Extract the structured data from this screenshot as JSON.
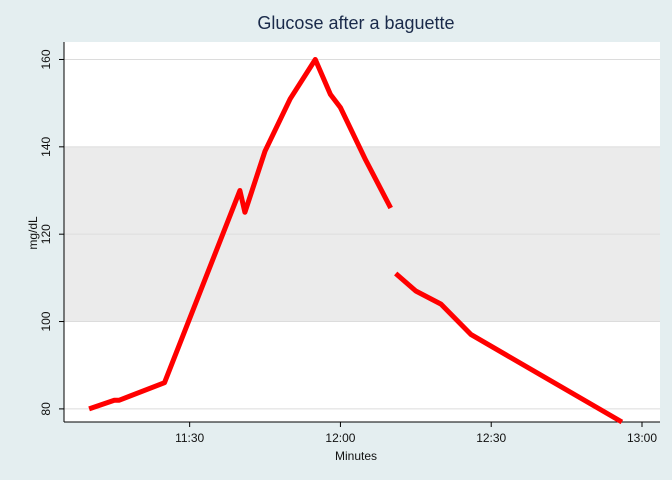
{
  "chart_data": {
    "type": "line",
    "title": "Glucose after a baguette",
    "xlabel": "Minutes",
    "ylabel": "mg/dL",
    "x_ticks": [
      "11:30",
      "12:00",
      "12:30",
      "13:00"
    ],
    "y_ticks": [
      80,
      100,
      120,
      140,
      160
    ],
    "ylim": [
      77,
      164
    ],
    "xlim": [
      "11:05",
      "13:00"
    ],
    "reference_band": {
      "from": 100,
      "to": 140,
      "color": "#ebebeb"
    },
    "grid": true,
    "series": [
      {
        "color": "#ff0000",
        "segments": [
          [
            {
              "x": "11:10",
              "y": 80
            },
            {
              "x": "11:15",
              "y": 82
            },
            {
              "x": "11:16",
              "y": 82
            },
            {
              "x": "11:25",
              "y": 86
            },
            {
              "x": "11:40",
              "y": 130
            },
            {
              "x": "11:41",
              "y": 125
            },
            {
              "x": "11:45",
              "y": 139
            },
            {
              "x": "11:50",
              "y": 151
            },
            {
              "x": "11:55",
              "y": 160
            },
            {
              "x": "11:58",
              "y": 152
            },
            {
              "x": "12:00",
              "y": 149
            },
            {
              "x": "12:05",
              "y": 137
            },
            {
              "x": "12:10",
              "y": 126
            }
          ],
          [
            {
              "x": "12:11",
              "y": 111
            },
            {
              "x": "12:15",
              "y": 107
            },
            {
              "x": "12:20",
              "y": 104
            },
            {
              "x": "12:26",
              "y": 97
            },
            {
              "x": "12:56",
              "y": 77
            }
          ]
        ]
      }
    ]
  }
}
